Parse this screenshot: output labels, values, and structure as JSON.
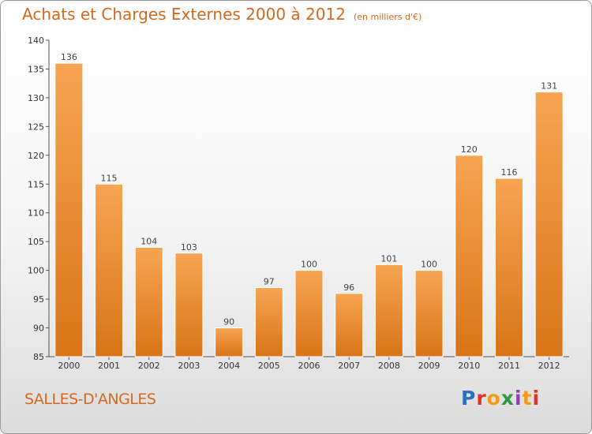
{
  "header": {
    "title": "Achats et Charges Externes 2000 à 2012",
    "subtitle": "(en milliers d'€)"
  },
  "footer": {
    "commune": "SALLES-D'ANGLES",
    "logo_letters": [
      "P",
      "r",
      "o",
      "x",
      "i",
      "t",
      "i"
    ]
  },
  "colors": {
    "title": "#d2691e",
    "bar_top": "#f7a552",
    "bar_bottom": "#d97417"
  },
  "chart_data": {
    "type": "bar",
    "title": "Achats et Charges Externes 2000 à 2012",
    "subtitle": "(en milliers d'€)",
    "xlabel": "",
    "ylabel": "",
    "categories": [
      "2000",
      "2001",
      "2002",
      "2003",
      "2004",
      "2005",
      "2006",
      "2007",
      "2008",
      "2009",
      "2010",
      "2011",
      "2012"
    ],
    "values": [
      136,
      115,
      104,
      103,
      90,
      97,
      100,
      96,
      101,
      100,
      120,
      116,
      131
    ],
    "ylim": [
      85,
      140
    ],
    "yticks": [
      85,
      90,
      95,
      100,
      105,
      110,
      115,
      120,
      125,
      130,
      135,
      140
    ],
    "grid": false,
    "legend": "none"
  }
}
